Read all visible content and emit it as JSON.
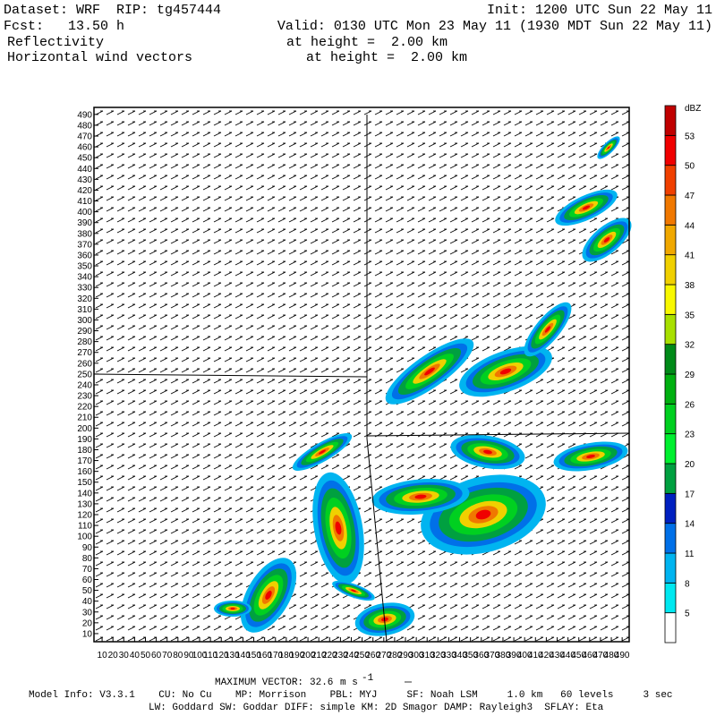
{
  "header": {
    "dataset": "Dataset: WRF  RIP: tg457444",
    "init": "Init: 1200 UTC Sun 22 May 11",
    "fcst": "Fcst:   13.50 h",
    "valid": "Valid: 0130 UTC Mon 23 May 11 (1930 MDT Sun 22 May 11)",
    "field1": "Reflectivity",
    "field1_level": "at height =  2.00 km",
    "field2": "Horizontal wind vectors",
    "field2_level": "at height =  2.00 km"
  },
  "plot": {
    "xlim": [
      2.5,
      496.5
    ],
    "ylim": [
      2.5,
      496.5
    ],
    "xticks": [
      10,
      20,
      30,
      40,
      50,
      60,
      70,
      80,
      90,
      100,
      110,
      120,
      130,
      140,
      150,
      160,
      170,
      180,
      190,
      200,
      210,
      220,
      230,
      240,
      250,
      260,
      270,
      280,
      290,
      300,
      310,
      320,
      330,
      340,
      350,
      360,
      370,
      380,
      390,
      400,
      410,
      420,
      430,
      440,
      450,
      460,
      470,
      480,
      490
    ],
    "yticks": [
      10,
      20,
      30,
      40,
      50,
      60,
      70,
      80,
      90,
      100,
      110,
      120,
      130,
      140,
      150,
      160,
      170,
      180,
      190,
      200,
      210,
      220,
      230,
      240,
      250,
      260,
      270,
      280,
      290,
      300,
      310,
      320,
      330,
      340,
      350,
      360,
      370,
      380,
      390,
      400,
      410,
      420,
      430,
      440,
      450,
      460,
      470,
      480,
      490
    ]
  },
  "colorbar": {
    "label": "dBZ",
    "levels": [
      5,
      8,
      11,
      14,
      17,
      20,
      23,
      26,
      29,
      32,
      35,
      38,
      41,
      44,
      47,
      50,
      53
    ],
    "colors": [
      "#ffffff",
      "#00e8f0",
      "#00b4f0",
      "#0070e8",
      "#0020c0",
      "#00a040",
      "#00f030",
      "#00d020",
      "#00b010",
      "#008a18",
      "#a8e000",
      "#f8f800",
      "#f0d000",
      "#f0a800",
      "#f07800",
      "#f04000",
      "#f00000",
      "#c00000"
    ]
  },
  "footer": {
    "max_vector_label": "MAXIMUM VECTOR:",
    "max_vector": 32.6,
    "max_vector_unit": "m s",
    "max_vector_exp": "-1",
    "model_info": "Model Info: V3.3.1    CU: No Cu    MP: Morrison    PBL: MYJ     SF: Noah LSM     1.0 km   60 levels     3 sec",
    "physics": "LW: Goddard SW: Goddar DIFF: simple KM: 2D Smagor DAMP: Rayleigh3  SFLAY: Eta"
  }
}
